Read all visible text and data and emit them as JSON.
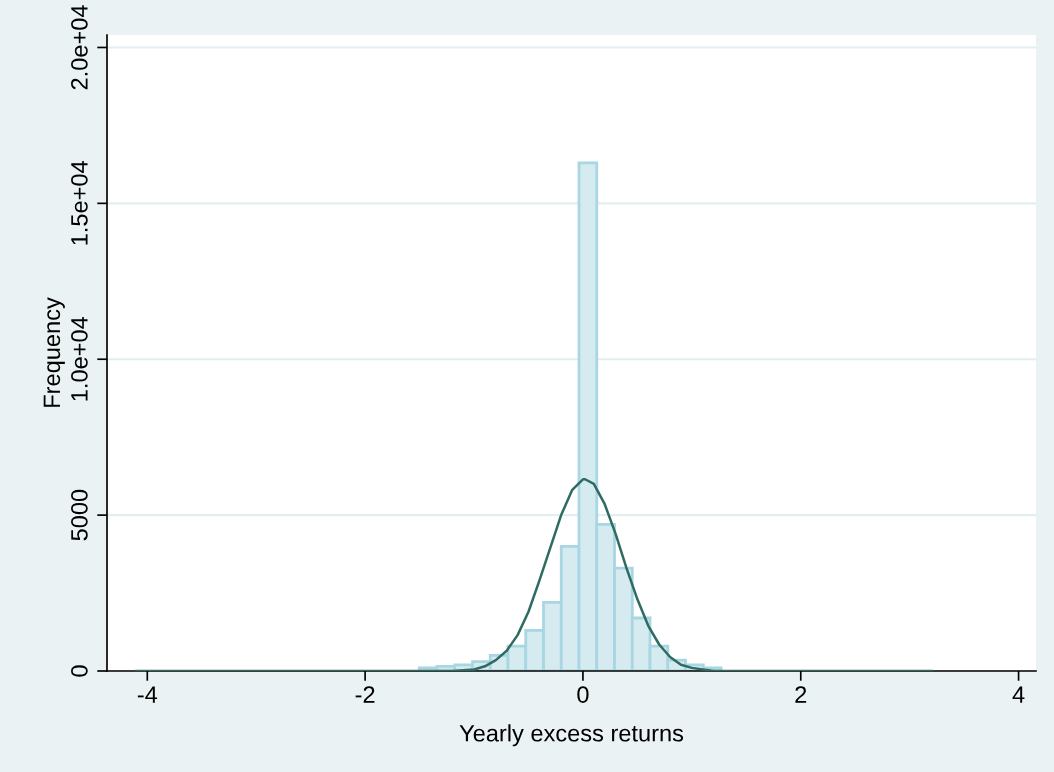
{
  "chart_data": {
    "type": "histogram",
    "xlabel": "Yearly excess returns",
    "ylabel": "Frequency",
    "xlim": [
      -4.37,
      4.16
    ],
    "xticks": [
      -4,
      -2,
      0,
      2,
      4
    ],
    "ylim": [
      0,
      20400
    ],
    "yticks": [
      0,
      5000,
      {
        "value": 10000,
        "label": "1.0e+04"
      },
      {
        "value": 15000,
        "label": "1.5e+04"
      },
      {
        "value": 20000,
        "label": "2.0e+04"
      }
    ],
    "grid": "y",
    "series": [
      {
        "type": "histogram",
        "color": "#a8d6e3",
        "bins": [
          -1.503,
          -1.34,
          -1.177,
          -1.014,
          -0.851,
          -0.688,
          -0.525,
          -0.362,
          -0.199,
          -0.036,
          0.127,
          0.29,
          0.453,
          0.616,
          0.779,
          0.942,
          1.105,
          1.268
        ],
        "values": [
          100,
          150,
          200,
          300,
          500,
          800,
          1300,
          2200,
          4000,
          16300,
          4700,
          3300,
          1700,
          800,
          350,
          200,
          100
        ]
      },
      {
        "type": "line",
        "color": "#2e6b62",
        "x": [
          -4.1,
          -2,
          -1.6,
          -1.4,
          -1.2,
          -1.0,
          -0.9,
          -0.8,
          -0.7,
          -0.6,
          -0.5,
          -0.4,
          -0.3,
          -0.2,
          -0.1,
          0,
          0.02,
          0.1,
          0.2,
          0.3,
          0.4,
          0.5,
          0.6,
          0.7,
          0.8,
          0.9,
          1.0,
          1.2,
          1.4,
          1.6,
          2,
          3.2
        ],
        "values": [
          0,
          0,
          0,
          0,
          0,
          50,
          150,
          350,
          650,
          1150,
          1900,
          2900,
          3950,
          5000,
          5800,
          6150,
          6150,
          6000,
          5350,
          4400,
          3300,
          2300,
          1450,
          850,
          450,
          200,
          100,
          0,
          0,
          0,
          0,
          0
        ]
      }
    ]
  }
}
